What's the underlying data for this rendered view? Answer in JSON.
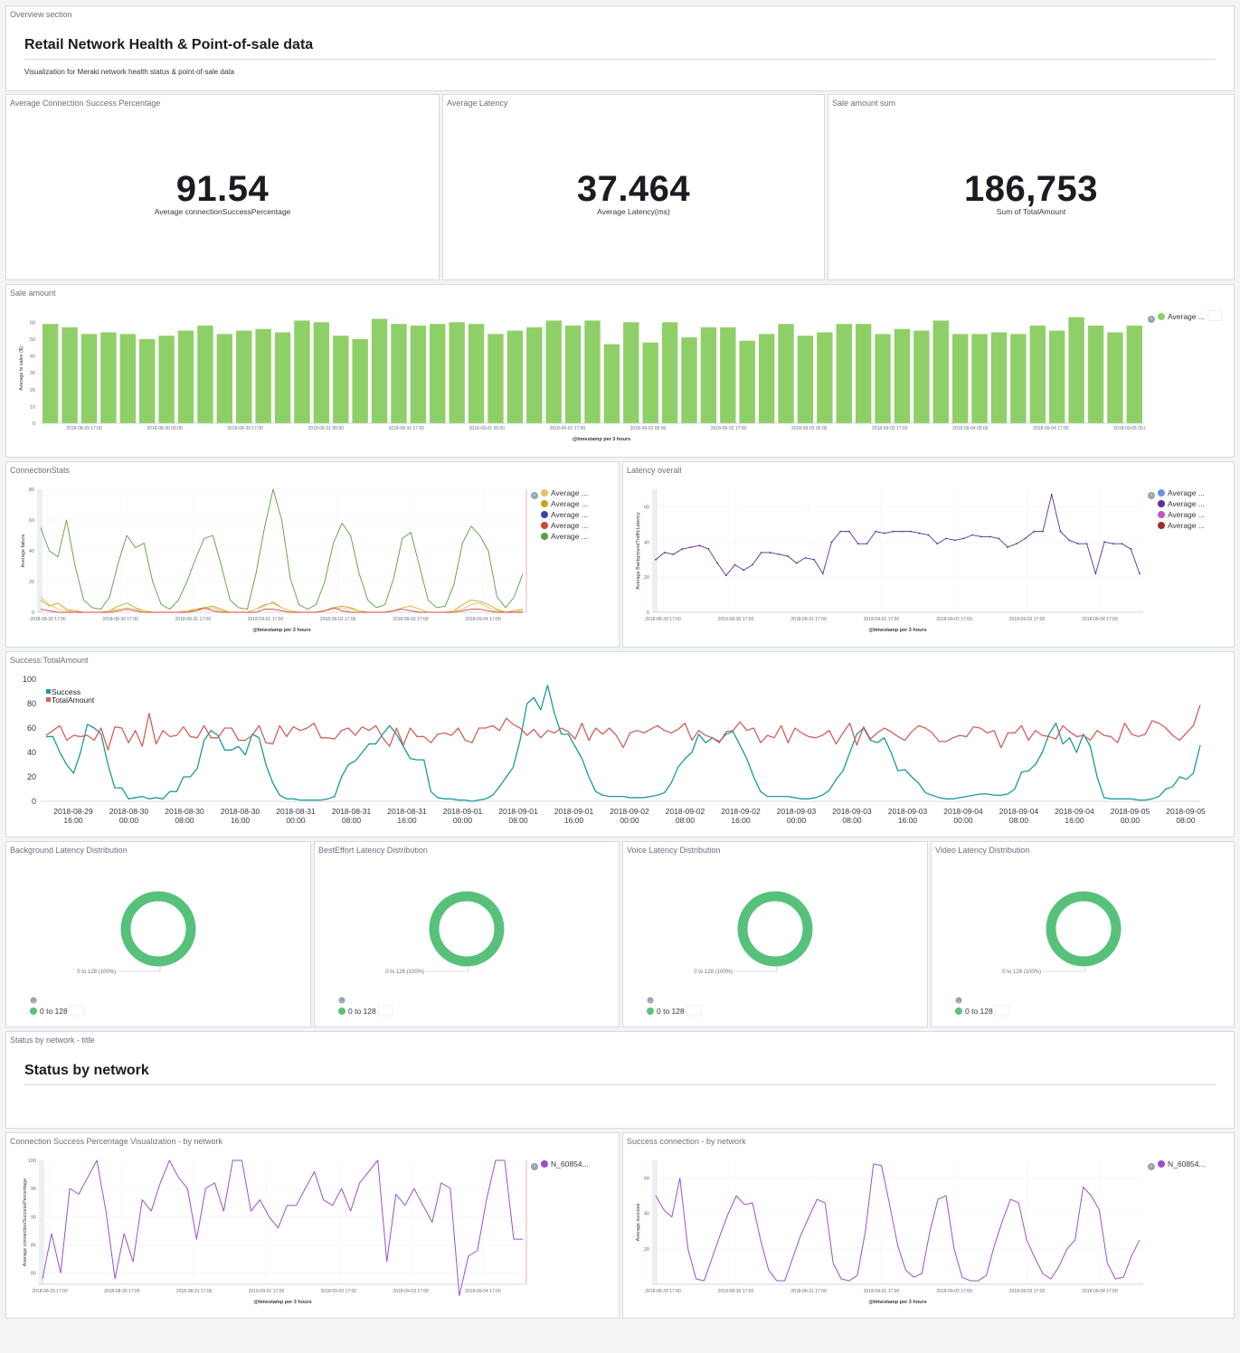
{
  "overview": {
    "panel_title": "Overview section",
    "title": "Retail Network Health & Point-of-sale data",
    "description": "Visualization for Meraki network health status & point-of-sale data"
  },
  "metrics": [
    {
      "panel_title": "Average Connection Success Percentage",
      "value": "91.54",
      "label": "Average connectionSuccessPercentage"
    },
    {
      "panel_title": "Average Latency",
      "value": "37.464",
      "label": "Average Latency(ms)"
    },
    {
      "panel_title": "Sale amount sum",
      "value": "186,753",
      "label": "Sum of TotalAmount"
    }
  ],
  "sale_amount": {
    "panel_title": "Sale amount",
    "legend": "Average ...",
    "chart_data": {
      "type": "bar",
      "ylabel": "Average ts sales ($)",
      "xlabel": "@timestamp per 3 hours",
      "ylim": [
        0,
        65
      ],
      "yticks": [
        0,
        10,
        20,
        30,
        40,
        50,
        60
      ],
      "xticks": [
        "2018-08-29 17:00",
        "2018-08-30 05:00",
        "2018-08-30 17:00",
        "2018-08-31 05:00",
        "2018-08-31 17:00",
        "2018-09-01 05:00",
        "2018-09-01 17:00",
        "2018-09-02 05:00",
        "2018-09-02 17:00",
        "2018-09-03 05:00",
        "2018-09-03 17:00",
        "2018-09-04 05:00",
        "2018-09-04 17:00",
        "2018-09-05 05:00"
      ],
      "values": [
        59,
        57,
        53,
        54,
        53,
        50,
        52,
        55,
        58,
        53,
        55,
        56,
        54,
        61,
        60,
        52,
        50,
        62,
        59,
        58,
        59,
        60,
        59,
        53,
        55,
        57,
        61,
        58,
        61,
        47,
        60,
        48,
        60,
        51,
        57,
        57,
        49,
        53,
        59,
        52,
        54,
        59,
        59,
        53,
        56,
        55,
        61,
        53,
        53,
        54,
        53,
        58,
        55,
        63,
        58,
        54,
        58
      ],
      "color": "#8fcf68"
    }
  },
  "connection_stats": {
    "panel_title": "ConnectionStats",
    "legend": [
      "Average ...",
      "Average ...",
      "Average ...",
      "Average ...",
      "Average ..."
    ],
    "legend_colors": [
      "#e8c15b",
      "#c3a628",
      "#3a44b0",
      "#d3463c",
      "#5a9e3f"
    ],
    "chart_data": {
      "type": "line",
      "ylabel": "Average failure",
      "xlabel": "@timestamp per 3 hours",
      "ylim": [
        0,
        80
      ],
      "yticks": [
        0,
        20,
        40,
        60,
        80
      ],
      "xticks": [
        "2018-08-29 17:00",
        "2018-08-30 17:00",
        "2018-08-31 17:00",
        "2018-09-01 17:00",
        "2018-09-02 17:00",
        "2018-09-03 17:00",
        "2018-09-04 17:00"
      ],
      "series": [
        {
          "color": "#5a9e3f",
          "values": [
            55,
            40,
            36,
            60,
            30,
            8,
            3,
            2,
            10,
            32,
            50,
            42,
            45,
            20,
            5,
            2,
            8,
            20,
            35,
            48,
            50,
            30,
            8,
            3,
            2,
            25,
            55,
            80,
            60,
            22,
            5,
            2,
            5,
            20,
            45,
            58,
            50,
            25,
            8,
            3,
            5,
            22,
            48,
            52,
            30,
            8,
            3,
            4,
            18,
            45,
            56,
            50,
            40,
            10,
            3,
            10,
            25
          ]
        },
        {
          "color": "#c3a628",
          "values": [
            8,
            4,
            6,
            2,
            1,
            0,
            0,
            0,
            1,
            4,
            6,
            3,
            1,
            0,
            0,
            0,
            0,
            1,
            2,
            3,
            4,
            2,
            0,
            0,
            0,
            2,
            5,
            6,
            3,
            1,
            0,
            0,
            0,
            1,
            3,
            4,
            3,
            1,
            0,
            0,
            0,
            1,
            3,
            4,
            2,
            0,
            0,
            0,
            1,
            5,
            8,
            7,
            5,
            2,
            0,
            1,
            2
          ]
        },
        {
          "color": "#e8c15b",
          "values": [
            10,
            5,
            2,
            1,
            0,
            0,
            0,
            0,
            1,
            2,
            3,
            2,
            1,
            0,
            0,
            0,
            0,
            1,
            1,
            2,
            3,
            1,
            0,
            0,
            0,
            2,
            4,
            7,
            3,
            1,
            0,
            0,
            0,
            1,
            2,
            3,
            2,
            1,
            0,
            0,
            0,
            1,
            3,
            4,
            2,
            0,
            0,
            0,
            1,
            2,
            5,
            6,
            3,
            1,
            0,
            0,
            1
          ]
        },
        {
          "color": "#d3463c",
          "values": [
            2,
            1,
            0,
            0,
            0,
            0,
            0,
            0,
            0,
            1,
            2,
            1,
            0,
            0,
            0,
            0,
            0,
            0,
            1,
            3,
            1,
            0,
            0,
            0,
            0,
            0,
            2,
            2,
            1,
            0,
            0,
            0,
            0,
            1,
            3,
            1,
            0,
            0,
            0,
            0,
            0,
            1,
            2,
            1,
            0,
            0,
            0,
            0,
            0,
            1,
            2,
            2,
            1,
            0,
            0,
            0,
            0
          ]
        }
      ]
    }
  },
  "latency_overall": {
    "panel_title": "Latency overall",
    "legend": [
      "Average ...",
      "Average ...",
      "Average ...",
      "Average ..."
    ],
    "legend_colors": [
      "#6e8fe0",
      "#5c2f9a",
      "#bf56c8",
      "#9a2f2f"
    ],
    "chart_data": {
      "type": "line",
      "ylabel": "Average BackgroundTrafficLatency",
      "xlabel": "@timestamp per 3 hours",
      "ylim": [
        0,
        70
      ],
      "yticks": [
        0,
        20,
        40,
        60
      ],
      "xticks": [
        "2018-08-29 17:00",
        "2018-08-30 17:00",
        "2018-08-31 17:00",
        "2018-09-01 17:00",
        "2018-09-02 17:00",
        "2018-09-03 17:00",
        "2018-09-04 17:00"
      ],
      "series": [
        {
          "color": "#5c2f9a",
          "values": [
            30,
            34,
            33,
            36,
            37,
            38,
            36,
            28,
            21,
            27,
            24,
            27,
            34,
            34,
            33,
            32,
            28,
            31,
            30,
            22,
            40,
            46,
            46,
            39,
            39,
            46,
            45,
            46,
            46,
            46,
            45,
            44,
            39,
            42,
            41,
            42,
            44,
            43,
            43,
            42,
            37,
            39,
            42,
            46,
            46,
            67,
            46,
            41,
            39,
            39,
            22,
            40,
            39,
            39,
            36,
            22
          ]
        }
      ]
    }
  },
  "success_total": {
    "panel_title": "Success:TotalAmount",
    "legend": [
      "Success",
      "TotalAmount"
    ],
    "chart_data": {
      "type": "line",
      "ylim": [
        0,
        100
      ],
      "yticks": [
        "0",
        "20",
        "40",
        "60",
        "80",
        "100"
      ],
      "xticks": [
        [
          "2018-08-29",
          "16:00"
        ],
        [
          "2018-08-30",
          "00:00"
        ],
        [
          "2018-08-30",
          "08:00"
        ],
        [
          "2018-08-30",
          "16:00"
        ],
        [
          "2018-08-31",
          "00:00"
        ],
        [
          "2018-08-31",
          "08:00"
        ],
        [
          "2018-08-31",
          "16:00"
        ],
        [
          "2018-09-01",
          "00:00"
        ],
        [
          "2018-09-01",
          "08:00"
        ],
        [
          "2018-09-01",
          "16:00"
        ],
        [
          "2018-09-02",
          "00:00"
        ],
        [
          "2018-09-02",
          "08:00"
        ],
        [
          "2018-09-02",
          "16:00"
        ],
        [
          "2018-09-03",
          "00:00"
        ],
        [
          "2018-09-03",
          "08:00"
        ],
        [
          "2018-09-03",
          "16:00"
        ],
        [
          "2018-09-04",
          "00:00"
        ],
        [
          "2018-09-04",
          "08:00"
        ],
        [
          "2018-09-04",
          "16:00"
        ],
        [
          "2018-09-05",
          "00:00"
        ],
        [
          "2018-09-05",
          "08:00"
        ]
      ],
      "series": [
        {
          "name": "Success",
          "color": "#1c9a9a",
          "values": [
            53,
            53,
            40,
            30,
            23,
            40,
            63,
            60,
            55,
            30,
            11,
            11,
            2,
            3,
            4,
            2,
            3,
            2,
            8,
            8,
            20,
            20,
            27,
            50,
            58,
            54,
            42,
            42,
            45,
            38,
            55,
            52,
            30,
            15,
            5,
            2,
            2,
            1,
            1,
            1,
            1,
            2,
            4,
            20,
            30,
            33,
            40,
            47,
            47,
            55,
            62,
            55,
            45,
            35,
            34,
            34,
            8,
            3,
            2,
            2,
            1,
            1,
            0,
            1,
            2,
            5,
            12,
            20,
            28,
            50,
            80,
            85,
            75,
            95,
            72,
            55,
            55,
            45,
            35,
            20,
            8,
            5,
            4,
            4,
            4,
            3,
            3,
            3,
            4,
            5,
            7,
            15,
            28,
            35,
            40,
            55,
            48,
            52,
            49,
            55,
            57,
            46,
            35,
            20,
            8,
            4,
            4,
            4,
            4,
            3,
            2,
            2,
            3,
            5,
            9,
            18,
            25,
            40,
            55,
            60,
            50,
            48,
            52,
            40,
            25,
            26,
            20,
            15,
            7,
            5,
            3,
            2,
            2,
            3,
            4,
            5,
            6,
            6,
            5,
            5,
            6,
            10,
            24,
            25,
            30,
            40,
            55,
            64,
            47,
            52,
            40,
            55,
            45,
            20,
            3,
            2,
            2,
            2,
            2,
            1,
            1,
            2,
            4,
            10,
            12,
            20,
            18,
            23,
            46
          ]
        },
        {
          "name": "TotalAmount",
          "color": "#d1605b",
          "values": [
            54,
            58,
            62,
            50,
            54,
            53,
            54,
            50,
            60,
            42,
            61,
            60,
            48,
            58,
            45,
            72,
            47,
            58,
            53,
            54,
            61,
            53,
            52,
            62,
            52,
            52,
            60,
            60,
            50,
            50,
            54,
            62,
            48,
            47,
            62,
            53,
            61,
            58,
            60,
            64,
            52,
            52,
            51,
            58,
            60,
            54,
            61,
            58,
            62,
            52,
            45,
            60,
            46,
            60,
            53,
            53,
            48,
            55,
            56,
            54,
            60,
            50,
            48,
            60,
            60,
            62,
            58,
            68,
            63,
            60,
            54,
            59,
            52,
            58,
            56,
            60,
            57,
            51,
            64,
            50,
            60,
            55,
            60,
            54,
            44,
            56,
            58,
            56,
            59,
            62,
            58,
            56,
            59,
            64,
            50,
            58,
            54,
            52,
            48,
            57,
            58,
            65,
            58,
            60,
            48,
            54,
            52,
            62,
            48,
            60,
            56,
            53,
            52,
            54,
            58,
            47,
            56,
            64,
            46,
            61,
            51,
            56,
            60,
            57,
            53,
            50,
            57,
            62,
            60,
            56,
            49,
            49,
            52,
            54,
            53,
            61,
            60,
            56,
            58,
            44,
            56,
            56,
            62,
            50,
            58,
            54,
            53,
            51,
            62,
            57,
            53,
            54,
            50,
            58,
            54,
            53,
            48,
            64,
            55,
            53,
            55,
            66,
            64,
            60,
            54,
            50,
            56,
            62,
            79
          ]
        }
      ]
    }
  },
  "latency_dist": [
    {
      "panel_title": "Background Latency Distribution",
      "slice_label": "0 to 128 (100%)",
      "legend": "0 to 128"
    },
    {
      "panel_title": "BestEffort Latency Distribution",
      "slice_label": "0 to 128 (100%)",
      "legend": "0 to 128"
    },
    {
      "panel_title": "Voice Latency Distribution",
      "slice_label": "0 to 128 (100%)",
      "legend": "0 to 128"
    },
    {
      "panel_title": "Video Latency Distribution",
      "slice_label": "0 to 128 (100%)",
      "legend": "0 to 128"
    }
  ],
  "donut_color": "#57c17b",
  "status_section": {
    "panel_title": "Status by network - title",
    "title": "Status by network"
  },
  "conn_success_by_network": {
    "panel_title": "Connection Success Percentage Visualization - by network",
    "legend": "N_60854...",
    "chart_data": {
      "type": "line",
      "ylabel": "Average connectionSuccessPercentage",
      "xlabel": "@timestamp per 3 hours",
      "ylim": [
        78,
        100
      ],
      "yticks": [
        80,
        85,
        90,
        95,
        100
      ],
      "xticks": [
        "2018-08-29 17:00",
        "2018-08-30 17:00",
        "2018-08-31 17:00",
        "2018-09-01 17:00",
        "2018-09-02 17:00",
        "2018-09-03 17:00",
        "2018-09-04 17:00"
      ],
      "series": [
        {
          "color": "#9d4fc9",
          "values": [
            79,
            87,
            80,
            95,
            94,
            97,
            100,
            91,
            79,
            87,
            82,
            93,
            91,
            96,
            100,
            97,
            95,
            86,
            95,
            96,
            91,
            100,
            100,
            91,
            93,
            90,
            88,
            92,
            92,
            95,
            98,
            93,
            92,
            95,
            91,
            96,
            98,
            100,
            82,
            94,
            92,
            95,
            92,
            89,
            96,
            95,
            76,
            83,
            84,
            93,
            100,
            100,
            86,
            86
          ]
        }
      ]
    }
  },
  "success_by_network": {
    "panel_title": "Success connection - by network",
    "legend": "N_60854...",
    "chart_data": {
      "type": "line",
      "ylabel": "Average success",
      "xlabel": "@timestamp per 3 hours",
      "ylim": [
        0,
        70
      ],
      "yticks": [
        20,
        40,
        60
      ],
      "xticks": [
        "2018-08-29 17:00",
        "2018-08-30 17:00",
        "2018-08-31 17:00",
        "2018-09-01 17:00",
        "2018-09-02 17:00",
        "2018-09-03 17:00",
        "2018-09-04 17:00"
      ],
      "series": [
        {
          "color": "#9d4fc9",
          "values": [
            50,
            42,
            38,
            60,
            20,
            3,
            2,
            15,
            28,
            40,
            50,
            45,
            46,
            25,
            8,
            2,
            2,
            15,
            28,
            38,
            48,
            46,
            12,
            3,
            2,
            5,
            30,
            68,
            67,
            45,
            22,
            8,
            4,
            6,
            30,
            48,
            50,
            20,
            4,
            2,
            2,
            5,
            22,
            36,
            48,
            46,
            25,
            15,
            6,
            3,
            10,
            20,
            25,
            55,
            50,
            42,
            12,
            3,
            4,
            16,
            25
          ]
        }
      ]
    }
  }
}
